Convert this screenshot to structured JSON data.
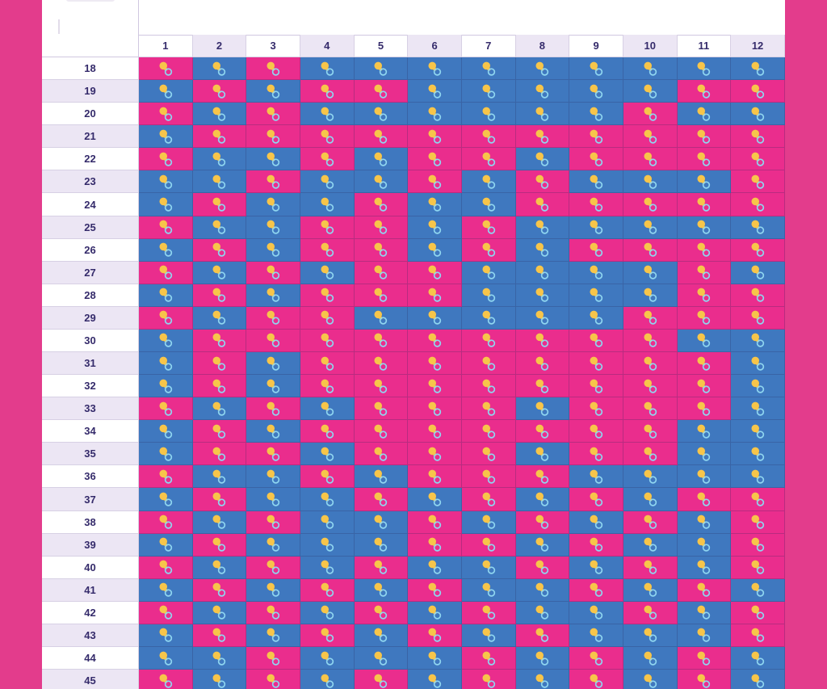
{
  "colors": {
    "girl": "#ea2d8d",
    "boy": "#3f78bf",
    "frame": "#e33c8c",
    "header_text": "#352b6b",
    "header_alt_bg": "#ece6f4"
  },
  "icon": "baby-pacifier-icon",
  "columns": [
    "1",
    "2",
    "3",
    "4",
    "5",
    "6",
    "7",
    "8",
    "9",
    "10",
    "11",
    "12"
  ],
  "rows": [
    {
      "age": "18",
      "cells": [
        "G",
        "B",
        "G",
        "B",
        "B",
        "B",
        "B",
        "B",
        "B",
        "B",
        "B",
        "B"
      ]
    },
    {
      "age": "19",
      "cells": [
        "B",
        "G",
        "B",
        "G",
        "G",
        "B",
        "B",
        "B",
        "B",
        "B",
        "G",
        "G"
      ]
    },
    {
      "age": "20",
      "cells": [
        "G",
        "B",
        "G",
        "B",
        "B",
        "B",
        "B",
        "B",
        "B",
        "G",
        "B",
        "B"
      ]
    },
    {
      "age": "21",
      "cells": [
        "B",
        "G",
        "G",
        "G",
        "G",
        "G",
        "G",
        "G",
        "G",
        "G",
        "G",
        "G"
      ]
    },
    {
      "age": "22",
      "cells": [
        "G",
        "B",
        "B",
        "G",
        "B",
        "G",
        "G",
        "B",
        "G",
        "G",
        "G",
        "G"
      ]
    },
    {
      "age": "23",
      "cells": [
        "B",
        "B",
        "G",
        "B",
        "B",
        "G",
        "B",
        "G",
        "B",
        "B",
        "B",
        "G"
      ]
    },
    {
      "age": "24",
      "cells": [
        "B",
        "G",
        "B",
        "B",
        "G",
        "B",
        "B",
        "G",
        "G",
        "G",
        "G",
        "G"
      ]
    },
    {
      "age": "25",
      "cells": [
        "G",
        "B",
        "B",
        "G",
        "G",
        "B",
        "G",
        "B",
        "B",
        "B",
        "B",
        "B"
      ]
    },
    {
      "age": "26",
      "cells": [
        "B",
        "G",
        "B",
        "G",
        "G",
        "B",
        "G",
        "B",
        "G",
        "G",
        "G",
        "G"
      ]
    },
    {
      "age": "27",
      "cells": [
        "G",
        "B",
        "G",
        "B",
        "G",
        "G",
        "B",
        "B",
        "B",
        "B",
        "G",
        "B"
      ]
    },
    {
      "age": "28",
      "cells": [
        "B",
        "G",
        "B",
        "G",
        "G",
        "G",
        "B",
        "B",
        "B",
        "B",
        "G",
        "G"
      ]
    },
    {
      "age": "29",
      "cells": [
        "G",
        "B",
        "G",
        "G",
        "B",
        "B",
        "B",
        "B",
        "B",
        "G",
        "G",
        "G"
      ]
    },
    {
      "age": "30",
      "cells": [
        "B",
        "G",
        "G",
        "G",
        "G",
        "G",
        "G",
        "G",
        "G",
        "G",
        "B",
        "B"
      ]
    },
    {
      "age": "31",
      "cells": [
        "B",
        "G",
        "B",
        "G",
        "G",
        "G",
        "G",
        "G",
        "G",
        "G",
        "G",
        "B"
      ]
    },
    {
      "age": "32",
      "cells": [
        "B",
        "G",
        "B",
        "G",
        "G",
        "G",
        "G",
        "G",
        "G",
        "G",
        "G",
        "B"
      ]
    },
    {
      "age": "33",
      "cells": [
        "G",
        "B",
        "G",
        "B",
        "G",
        "G",
        "G",
        "B",
        "G",
        "G",
        "G",
        "B"
      ]
    },
    {
      "age": "34",
      "cells": [
        "B",
        "G",
        "B",
        "G",
        "G",
        "G",
        "G",
        "G",
        "G",
        "G",
        "B",
        "B"
      ]
    },
    {
      "age": "35",
      "cells": [
        "B",
        "G",
        "G",
        "B",
        "G",
        "G",
        "G",
        "B",
        "G",
        "G",
        "B",
        "B"
      ]
    },
    {
      "age": "36",
      "cells": [
        "G",
        "B",
        "B",
        "G",
        "B",
        "G",
        "G",
        "G",
        "B",
        "B",
        "B",
        "B"
      ]
    },
    {
      "age": "37",
      "cells": [
        "B",
        "G",
        "B",
        "B",
        "G",
        "B",
        "G",
        "B",
        "G",
        "B",
        "G",
        "G"
      ]
    },
    {
      "age": "38",
      "cells": [
        "G",
        "B",
        "G",
        "B",
        "B",
        "G",
        "B",
        "G",
        "B",
        "G",
        "B",
        "G"
      ]
    },
    {
      "age": "39",
      "cells": [
        "B",
        "G",
        "B",
        "B",
        "B",
        "G",
        "G",
        "B",
        "G",
        "B",
        "B",
        "G"
      ]
    },
    {
      "age": "40",
      "cells": [
        "G",
        "B",
        "G",
        "B",
        "G",
        "B",
        "B",
        "G",
        "B",
        "G",
        "B",
        "G"
      ]
    },
    {
      "age": "41",
      "cells": [
        "B",
        "G",
        "B",
        "G",
        "B",
        "G",
        "B",
        "B",
        "G",
        "B",
        "G",
        "B"
      ]
    },
    {
      "age": "42",
      "cells": [
        "G",
        "B",
        "G",
        "B",
        "G",
        "B",
        "G",
        "B",
        "B",
        "G",
        "B",
        "G"
      ]
    },
    {
      "age": "43",
      "cells": [
        "B",
        "G",
        "B",
        "G",
        "B",
        "G",
        "B",
        "G",
        "B",
        "B",
        "B",
        "G"
      ]
    },
    {
      "age": "44",
      "cells": [
        "B",
        "B",
        "G",
        "B",
        "B",
        "B",
        "G",
        "B",
        "G",
        "B",
        "G",
        "B"
      ]
    },
    {
      "age": "45",
      "cells": [
        "G",
        "B",
        "G",
        "B",
        "G",
        "B",
        "G",
        "B",
        "G",
        "B",
        "G",
        "B"
      ]
    }
  ]
}
